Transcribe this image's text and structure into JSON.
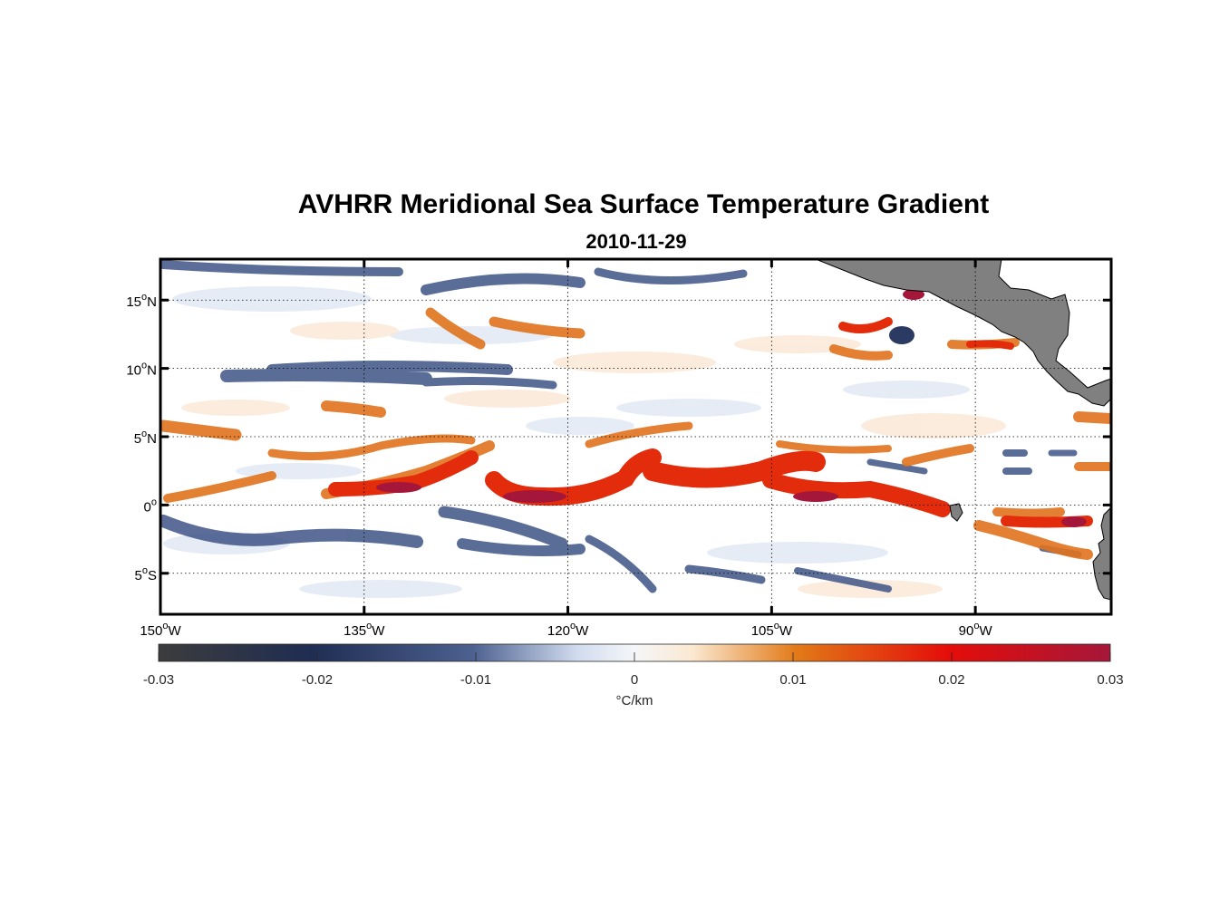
{
  "figure": {
    "title": "AVHRR Meridional Sea Surface Temperature Gradient",
    "subtitle": "2010-11-29"
  },
  "map": {
    "lon_range": [
      -150,
      -80
    ],
    "lat_range": [
      -8,
      18
    ],
    "lon_ticks": [
      {
        "value": -150,
        "num": "150",
        "hem": "W"
      },
      {
        "value": -135,
        "num": "135",
        "hem": "W"
      },
      {
        "value": -120,
        "num": "120",
        "hem": "W"
      },
      {
        "value": -105,
        "num": "105",
        "hem": "W"
      },
      {
        "value": -90,
        "num": "90",
        "hem": "W"
      }
    ],
    "lat_ticks": [
      {
        "value": 15,
        "num": "15",
        "hem": "N"
      },
      {
        "value": 10,
        "num": "10",
        "hem": "N"
      },
      {
        "value": 5,
        "num": "5",
        "hem": "N"
      },
      {
        "value": 0,
        "num": "0",
        "hem": ""
      },
      {
        "value": -5,
        "num": "5",
        "hem": "S"
      }
    ],
    "degree_symbol": "o",
    "grid": "dotted",
    "land_color": "#808080"
  },
  "colorbar": {
    "min": -0.03,
    "max": 0.03,
    "ticks": [
      "-0.03",
      "-0.02",
      "-0.01",
      "0",
      "0.01",
      "0.02",
      "0.03"
    ],
    "label": "°C/km",
    "colors": [
      "#3c3c3c",
      "#1f2d52",
      "#4c6190",
      "#d2dcef",
      "#f4f6f8",
      "#fbe9d2",
      "#e27a18",
      "#e40d09",
      "#a5173a"
    ]
  }
}
